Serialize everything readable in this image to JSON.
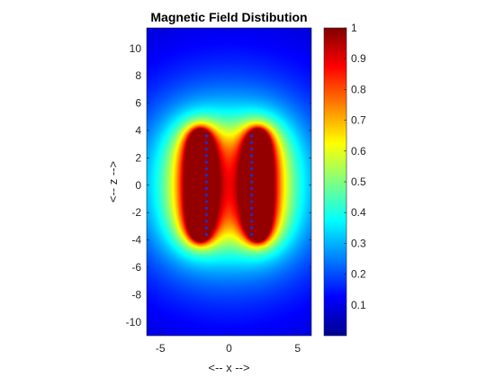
{
  "chart_data": {
    "type": "heatmap",
    "title": "Magnetic Field Distibution",
    "xlabel": "<-- x -->",
    "ylabel": "<-- z -->",
    "xlim": [
      -6,
      6
    ],
    "ylim": [
      -11,
      11.5
    ],
    "x_ticks": [
      -5,
      0,
      5
    ],
    "y_ticks": [
      -10,
      -8,
      -6,
      -4,
      -2,
      0,
      2,
      4,
      6,
      8,
      10
    ],
    "colormap": "jet",
    "clim": [
      0,
      1
    ],
    "colorbar_ticks": [
      0.1,
      0.2,
      0.3,
      0.4,
      0.5,
      0.6,
      0.7,
      0.8,
      0.9,
      1
    ],
    "colorbar_tick_labels": [
      "0.1",
      "0.2",
      "0.3",
      "0.4",
      "0.5",
      "0.6",
      "0.7",
      "0.8",
      "0.9",
      "1"
    ],
    "x_tick_labels": [
      "-5",
      "0",
      "5"
    ],
    "y_tick_labels": [
      "-10",
      "-8",
      "-6",
      "-4",
      "-2",
      "0",
      "2",
      "4",
      "6",
      "8",
      "10"
    ],
    "sources": [
      {
        "x": -2.1,
        "z_range": [
          -3.6,
          3.6
        ]
      },
      {
        "x": 2.1,
        "z_range": [
          -3.6,
          3.6
        ]
      }
    ],
    "grid": false
  }
}
